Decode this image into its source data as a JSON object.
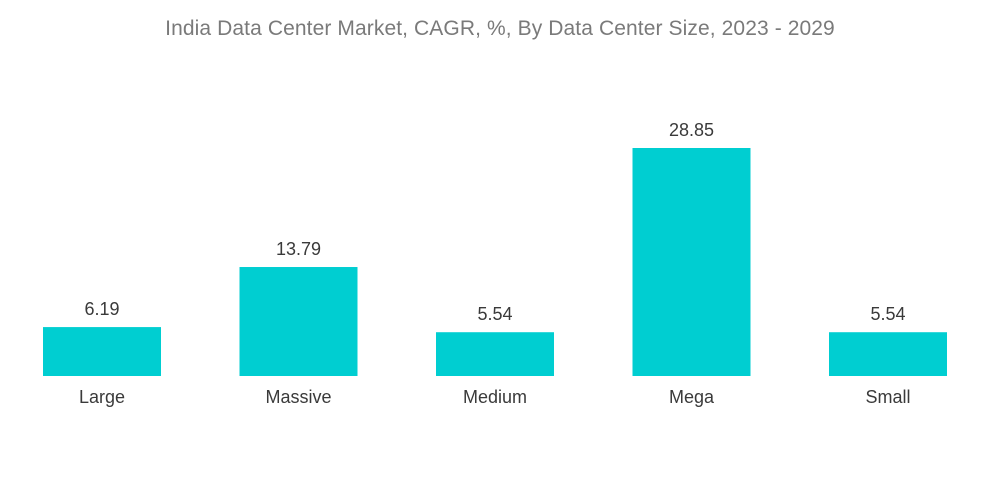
{
  "chart_data": {
    "type": "bar",
    "title": "India Data Center Market, CAGR, %, By Data Center Size, 2023 - 2029",
    "categories": [
      "Large",
      "Massive",
      "Medium",
      "Mega",
      "Small"
    ],
    "values": [
      6.19,
      13.79,
      5.54,
      28.85,
      5.54
    ],
    "value_labels": [
      "6.19",
      "13.79",
      "5.54",
      "28.85",
      "5.54"
    ],
    "xlabel": "",
    "ylabel": "",
    "ylim": [
      0,
      28.85
    ],
    "grid": false,
    "legend": "none",
    "colors": {
      "bar": "#00CED1",
      "text": "#3a3a3a",
      "title": "#7a7a7a"
    }
  }
}
